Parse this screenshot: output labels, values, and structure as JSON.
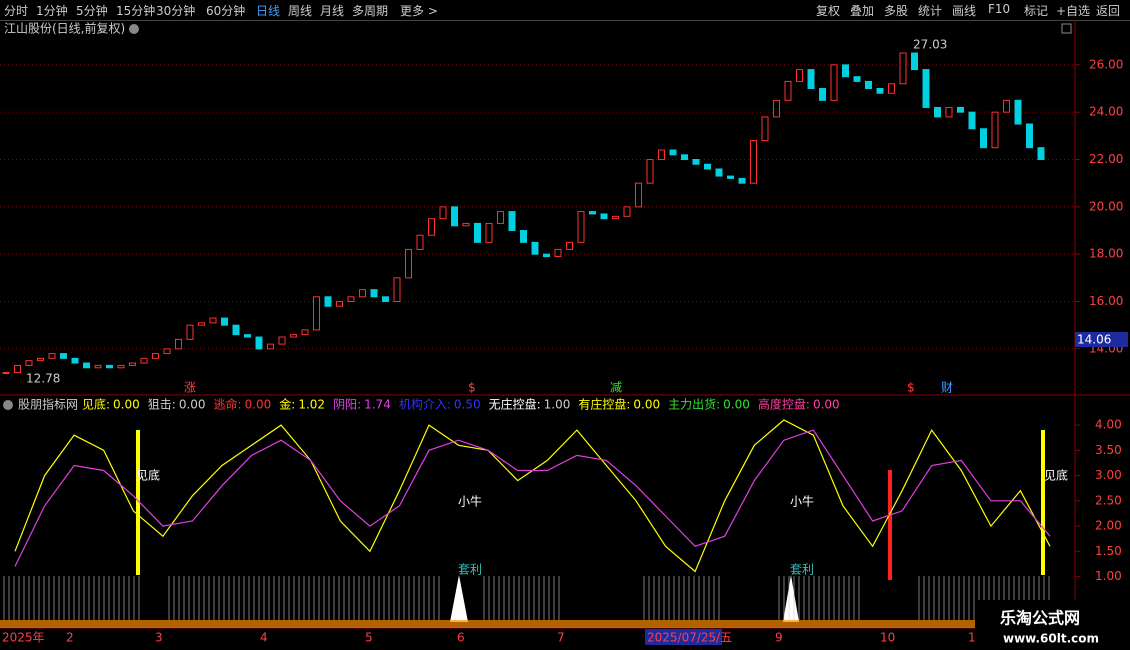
{
  "toolbar": {
    "periods": [
      "分时",
      "1分钟",
      "5分钟",
      "15分钟",
      "30分钟",
      "60分钟",
      "日线",
      "周线",
      "月线",
      "多周期",
      "更多 >"
    ],
    "actions": [
      "复权",
      "叠加",
      "多股",
      "统计",
      "画线",
      "F10",
      "标记",
      "+自选",
      "返回"
    ]
  },
  "stock_title": "江山股份(日线,前复权)",
  "price_chart": {
    "type": "candlestick",
    "closes": [
      13.0,
      13.3,
      13.5,
      13.6,
      13.8,
      13.6,
      13.4,
      13.2,
      13.3,
      13.2,
      13.3,
      13.4,
      13.6,
      13.8,
      14.0,
      14.4,
      15.0,
      15.1,
      15.3,
      15.0,
      14.6,
      14.5,
      14.0,
      14.2,
      14.5,
      14.6,
      14.8,
      16.2,
      15.8,
      16.0,
      16.2,
      16.5,
      16.2,
      16.0,
      17.0,
      18.2,
      18.8,
      19.5,
      20.0,
      19.2,
      19.3,
      18.5,
      19.3,
      19.8,
      19.0,
      18.5,
      18.0,
      17.9,
      18.2,
      18.5,
      19.8,
      19.7,
      19.5,
      19.6,
      20.0,
      21.0,
      22.0,
      22.4,
      22.2,
      22.0,
      21.8,
      21.6,
      21.3,
      21.2,
      21.0,
      22.8,
      23.8,
      24.5,
      25.3,
      25.8,
      25.0,
      24.5,
      26.0,
      25.5,
      25.3,
      25.0,
      24.8,
      25.2,
      26.5,
      25.8,
      24.2,
      23.8,
      24.2,
      24.0,
      23.3,
      22.5,
      24.0,
      24.5,
      23.5,
      22.5,
      22.0
    ],
    "ylim": [
      12.05,
      27.05
    ],
    "yticks": [
      {
        "value": 14,
        "label": "14.00"
      },
      {
        "value": 16,
        "label": "16.00"
      },
      {
        "value": 18,
        "label": "18.00"
      },
      {
        "value": 20,
        "label": "20.00"
      },
      {
        "value": 22,
        "label": "22.00"
      },
      {
        "value": 24,
        "label": "24.00"
      },
      {
        "value": 26,
        "label": "26.00"
      }
    ],
    "low_label": 12.78,
    "high_label": 27.03,
    "current_price": 14.06,
    "markers": [
      "涨",
      "$",
      "减",
      "$",
      "财"
    ]
  },
  "indicator": {
    "name": "股朋指标网",
    "legend": [
      {
        "label": "见底:",
        "value": {
          "value": 0,
          "label": "0.00"
        }
      },
      {
        "label": "狙击:",
        "value": {
          "value": 0,
          "label": "0.00"
        }
      },
      {
        "label": "逃命:",
        "value": {
          "value": 0,
          "label": "0.00"
        }
      },
      {
        "label": "金:",
        "value": {
          "value": 1.02,
          "label": "1.02"
        }
      },
      {
        "label": "阴阳:",
        "value": {
          "value": 1.74,
          "label": "1.74"
        }
      },
      {
        "label": "机构介入:",
        "value": {
          "value": 0.5,
          "label": "0.50"
        }
      },
      {
        "label": "无庄控盘:",
        "value": {
          "value": 1,
          "label": "1.00"
        }
      },
      {
        "label": "有庄控盘:",
        "value": {
          "value": 0,
          "label": "0.00"
        }
      },
      {
        "label": "主力出货:",
        "value": {
          "value": 0,
          "label": "0.00"
        }
      },
      {
        "label": "高度控盘:",
        "value": {
          "value": 0,
          "label": "0.00"
        }
      }
    ],
    "ylim": [
      0.04,
      4.2
    ],
    "yticks": [
      {
        "value": 1,
        "label": "1.00"
      },
      {
        "value": 1.5,
        "label": "1.50"
      },
      {
        "value": 2,
        "label": "2.00"
      },
      {
        "value": 2.5,
        "label": "2.50"
      },
      {
        "value": 3,
        "label": "3.00"
      },
      {
        "value": 3.5,
        "label": "3.50"
      },
      {
        "value": 4,
        "label": "4.00"
      }
    ],
    "series": [
      {
        "color": "#ffff00",
        "values": [
          1.5,
          3.0,
          3.8,
          3.5,
          2.3,
          1.8,
          2.6,
          3.2,
          3.6,
          4.0,
          3.3,
          2.1,
          1.5,
          2.7,
          4.0,
          3.6,
          3.5,
          2.9,
          3.3,
          3.9,
          3.2,
          2.5,
          1.6,
          1.1,
          2.5,
          3.6,
          4.1,
          3.8,
          2.4,
          1.6,
          2.7,
          3.9,
          3.1,
          2.0,
          2.7,
          1.6
        ]
      },
      {
        "color": "#e040e0",
        "values": [
          1.2,
          2.4,
          3.2,
          3.1,
          2.6,
          2.0,
          2.1,
          2.8,
          3.4,
          3.7,
          3.3,
          2.5,
          2.0,
          2.4,
          3.5,
          3.7,
          3.5,
          3.1,
          3.1,
          3.4,
          3.3,
          2.8,
          2.2,
          1.6,
          1.8,
          2.9,
          3.7,
          3.9,
          3.0,
          2.1,
          2.3,
          3.2,
          3.3,
          2.5,
          2.5,
          1.8
        ]
      }
    ],
    "annotations": [
      "见底",
      "小牛",
      "小牛",
      "见底",
      "套利",
      "套利"
    ]
  },
  "date_axis": [
    "2025年",
    "2",
    "3",
    "4",
    "5",
    "6",
    "7",
    "2025/07/25/五",
    "9",
    "10",
    "1"
  ],
  "watermark": {
    "title": "乐淘公式网",
    "url": "www.60lt.com"
  }
}
